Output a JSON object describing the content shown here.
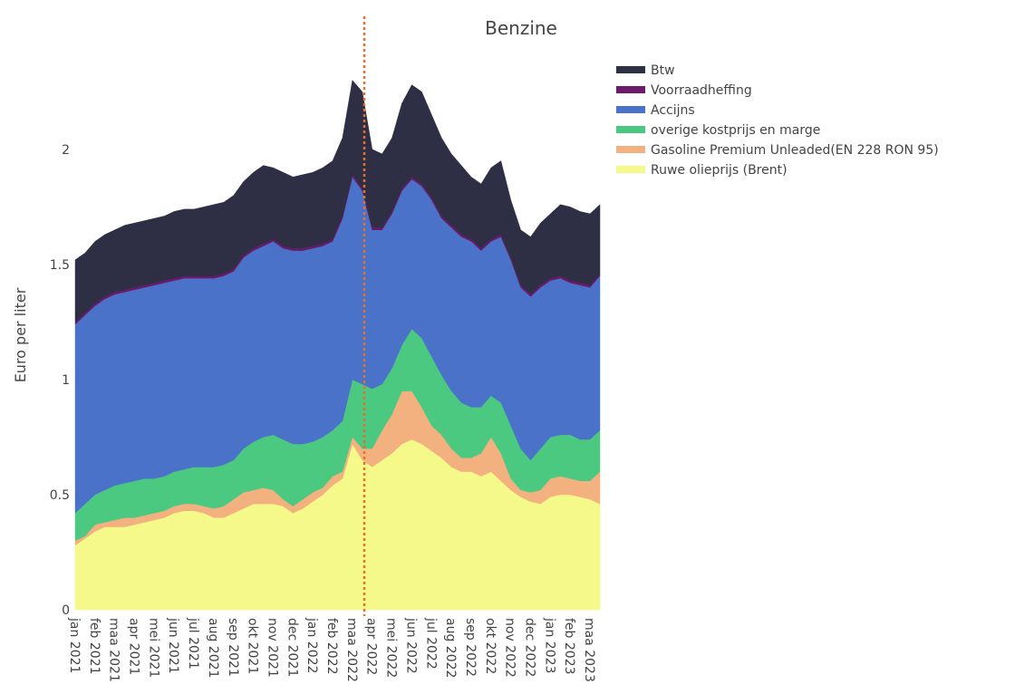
{
  "chart_data": {
    "type": "stacked-area",
    "title": "Benzine",
    "y_label": "Euro per liter",
    "categories": [
      "jan 2021",
      null,
      "feb 2021",
      null,
      "maa 2021",
      null,
      "apr 2021",
      null,
      "mei 2021",
      null,
      "jun 2021",
      null,
      "jul 2021",
      null,
      "aug 2021",
      null,
      "sep 2021",
      null,
      "okt 2021",
      null,
      "nov 2021",
      null,
      "dec 2021",
      null,
      "jan 2022",
      null,
      "feb 2022",
      null,
      "maa 2022",
      null,
      "apr 2022",
      null,
      "mei 2022",
      null,
      "jun 2022",
      null,
      "jul 2022",
      null,
      "aug 2022",
      null,
      "sep 2022",
      null,
      "okt 2022",
      null,
      "nov 2022",
      null,
      "dec 2022",
      null,
      "jan 2023",
      null,
      "feb 2023",
      null,
      "maa 2023",
      null
    ],
    "series": [
      {
        "name": "Ruwe olieprijs (Brent)",
        "color": "#f4f98a",
        "values": [
          0.28,
          0.31,
          0.34,
          0.36,
          0.36,
          0.36,
          0.37,
          0.38,
          0.39,
          0.4,
          0.42,
          0.43,
          0.43,
          0.42,
          0.4,
          0.4,
          0.42,
          0.44,
          0.46,
          0.46,
          0.46,
          0.45,
          0.42,
          0.44,
          0.47,
          0.5,
          0.54,
          0.57,
          0.72,
          0.65,
          0.62,
          0.65,
          0.68,
          0.72,
          0.74,
          0.72,
          0.69,
          0.66,
          0.62,
          0.6,
          0.6,
          0.58,
          0.6,
          0.56,
          0.52,
          0.49,
          0.47,
          0.46,
          0.49,
          0.5,
          0.5,
          0.49,
          0.48,
          0.46
        ]
      },
      {
        "name": "Gasoline Premium Unleaded(EN 228 RON 95)",
        "color": "#f2b17f",
        "values": [
          0.02,
          0.01,
          0.03,
          0.02,
          0.03,
          0.04,
          0.03,
          0.03,
          0.03,
          0.03,
          0.03,
          0.03,
          0.03,
          0.03,
          0.04,
          0.05,
          0.06,
          0.07,
          0.06,
          0.07,
          0.06,
          0.03,
          0.03,
          0.04,
          0.04,
          0.03,
          0.04,
          0.03,
          0.03,
          0.05,
          0.08,
          0.13,
          0.17,
          0.23,
          0.21,
          0.16,
          0.11,
          0.1,
          0.08,
          0.06,
          0.06,
          0.1,
          0.15,
          0.12,
          0.05,
          0.03,
          0.04,
          0.06,
          0.08,
          0.08,
          0.07,
          0.07,
          0.08,
          0.14
        ]
      },
      {
        "name": "overige kostprijs en marge",
        "color": "#4cc981",
        "values": [
          0.12,
          0.14,
          0.13,
          0.14,
          0.15,
          0.15,
          0.16,
          0.16,
          0.15,
          0.15,
          0.15,
          0.15,
          0.16,
          0.17,
          0.18,
          0.18,
          0.17,
          0.19,
          0.21,
          0.22,
          0.24,
          0.26,
          0.27,
          0.24,
          0.22,
          0.22,
          0.2,
          0.22,
          0.25,
          0.28,
          0.26,
          0.2,
          0.2,
          0.2,
          0.27,
          0.3,
          0.3,
          0.26,
          0.25,
          0.24,
          0.22,
          0.2,
          0.18,
          0.22,
          0.23,
          0.18,
          0.14,
          0.18,
          0.18,
          0.18,
          0.19,
          0.18,
          0.18,
          0.18
        ]
      },
      {
        "name": "Accijns",
        "color": "#4a72c9",
        "values": [
          0.82,
          0.82,
          0.82,
          0.83,
          0.83,
          0.83,
          0.83,
          0.83,
          0.84,
          0.84,
          0.83,
          0.83,
          0.82,
          0.82,
          0.82,
          0.82,
          0.82,
          0.83,
          0.83,
          0.83,
          0.84,
          0.83,
          0.84,
          0.84,
          0.84,
          0.83,
          0.82,
          0.88,
          0.88,
          0.84,
          0.69,
          0.67,
          0.67,
          0.67,
          0.65,
          0.66,
          0.68,
          0.68,
          0.71,
          0.72,
          0.72,
          0.68,
          0.67,
          0.72,
          0.72,
          0.7,
          0.71,
          0.7,
          0.68,
          0.68,
          0.66,
          0.67,
          0.66,
          0.67
        ]
      },
      {
        "name": "Voorraadheffing",
        "color": "#6b1a6b",
        "values": [
          0.01,
          0.01,
          0.01,
          0.01,
          0.01,
          0.01,
          0.01,
          0.01,
          0.01,
          0.01,
          0.01,
          0.01,
          0.01,
          0.01,
          0.01,
          0.01,
          0.01,
          0.01,
          0.01,
          0.01,
          0.01,
          0.01,
          0.01,
          0.01,
          0.01,
          0.01,
          0.01,
          0.01,
          0.01,
          0.01,
          0.01,
          0.01,
          0.01,
          0.01,
          0.01,
          0.01,
          0.01,
          0.01,
          0.01,
          0.01,
          0.01,
          0.01,
          0.01,
          0.01,
          0.01,
          0.01,
          0.01,
          0.01,
          0.01,
          0.01,
          0.01,
          0.01,
          0.01,
          0.01
        ]
      },
      {
        "name": "Btw",
        "color": "#2e2e45",
        "values": [
          0.27,
          0.26,
          0.27,
          0.27,
          0.27,
          0.28,
          0.28,
          0.28,
          0.28,
          0.28,
          0.29,
          0.29,
          0.29,
          0.3,
          0.31,
          0.31,
          0.32,
          0.32,
          0.33,
          0.34,
          0.31,
          0.32,
          0.31,
          0.32,
          0.32,
          0.33,
          0.34,
          0.34,
          0.41,
          0.42,
          0.34,
          0.32,
          0.32,
          0.37,
          0.4,
          0.4,
          0.36,
          0.34,
          0.31,
          0.3,
          0.27,
          0.28,
          0.31,
          0.32,
          0.25,
          0.24,
          0.25,
          0.27,
          0.28,
          0.31,
          0.32,
          0.31,
          0.31,
          0.3
        ]
      }
    ],
    "ylim": [
      0,
      2.57
    ],
    "yticks": [
      0,
      0.5,
      1,
      1.5,
      2
    ],
    "grid": false
  }
}
